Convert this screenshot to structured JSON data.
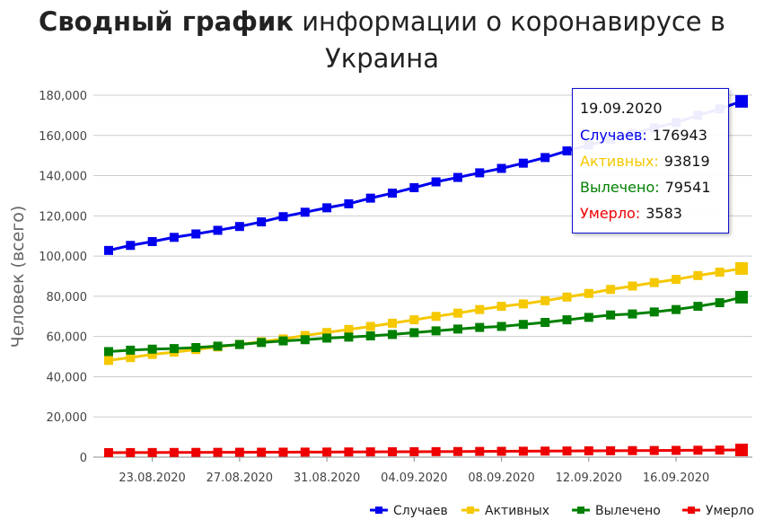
{
  "title": {
    "bold": "Сводный график",
    "rest": "информации о коронавирусе в Украина"
  },
  "colors": {
    "cases": "#0000ee",
    "active": "#f5c800",
    "recovered": "#008000",
    "deaths": "#ee0000",
    "grid": "#cccccc",
    "axis_text": "#444444"
  },
  "chart_data": {
    "type": "line",
    "ylabel": "Человек (всего)",
    "ylim": [
      0,
      180000
    ],
    "yticks": [
      0,
      20000,
      40000,
      60000,
      80000,
      100000,
      120000,
      140000,
      160000,
      180000
    ],
    "ytick_labels": [
      "0",
      "20,000",
      "40,000",
      "60,000",
      "80,000",
      "100,000",
      "120,000",
      "140,000",
      "160,000",
      "180,000"
    ],
    "x": [
      "21.08.2020",
      "22.08.2020",
      "23.08.2020",
      "24.08.2020",
      "25.08.2020",
      "26.08.2020",
      "27.08.2020",
      "28.08.2020",
      "29.08.2020",
      "30.08.2020",
      "31.08.2020",
      "01.09.2020",
      "02.09.2020",
      "03.09.2020",
      "04.09.2020",
      "05.09.2020",
      "06.09.2020",
      "07.09.2020",
      "08.09.2020",
      "09.09.2020",
      "10.09.2020",
      "11.09.2020",
      "12.09.2020",
      "13.09.2020",
      "14.09.2020",
      "15.09.2020",
      "16.09.2020",
      "17.09.2020",
      "18.09.2020",
      "19.09.2020"
    ],
    "xtick_labels": [
      "23.08.2020",
      "27.08.2020",
      "31.08.2020",
      "04.09.2020",
      "08.09.2020",
      "12.09.2020",
      "16.09.2020"
    ],
    "grid": true,
    "legend_position": "bottom-right",
    "series": [
      {
        "name": "Случаев",
        "key": "cases",
        "values": [
          102800,
          105300,
          107200,
          109300,
          111000,
          112800,
          114700,
          117000,
          119600,
          121800,
          124000,
          126000,
          128800,
          131300,
          134000,
          136900,
          139100,
          141400,
          143600,
          146200,
          149000,
          152300,
          155200,
          158000,
          161000,
          163700,
          166400,
          170000,
          173200,
          176943
        ]
      },
      {
        "name": "Активных",
        "key": "active",
        "values": [
          48100,
          49500,
          51100,
          52200,
          53500,
          54800,
          56100,
          57400,
          58800,
          60500,
          62000,
          63500,
          65000,
          66600,
          68300,
          70000,
          71600,
          73400,
          75000,
          76200,
          77800,
          79600,
          81400,
          83400,
          85100,
          86800,
          88400,
          90300,
          92000,
          93819
        ]
      },
      {
        "name": "Вылечено",
        "key": "recovered",
        "values": [
          52500,
          53200,
          53700,
          54000,
          54500,
          55200,
          56000,
          57000,
          57800,
          58400,
          59200,
          59700,
          60300,
          61000,
          61900,
          62800,
          63700,
          64500,
          65000,
          66000,
          67000,
          68300,
          69500,
          70700,
          71200,
          72200,
          73400,
          75000,
          76800,
          79541
        ]
      },
      {
        "name": "Умерло",
        "key": "deaths",
        "values": [
          2250,
          2270,
          2300,
          2330,
          2360,
          2390,
          2420,
          2450,
          2480,
          2510,
          2540,
          2580,
          2620,
          2660,
          2700,
          2740,
          2790,
          2840,
          2890,
          2940,
          3000,
          3060,
          3120,
          3180,
          3240,
          3300,
          3360,
          3430,
          3510,
          3583
        ]
      }
    ]
  },
  "tooltip": {
    "date": "19.09.2020",
    "rows": [
      {
        "label": "Случаев:",
        "value": "176943"
      },
      {
        "label": "Активных:",
        "value": "93819"
      },
      {
        "label": "Вылечено:",
        "value": "79541"
      },
      {
        "label": "Умерло:",
        "value": "3583"
      }
    ]
  }
}
